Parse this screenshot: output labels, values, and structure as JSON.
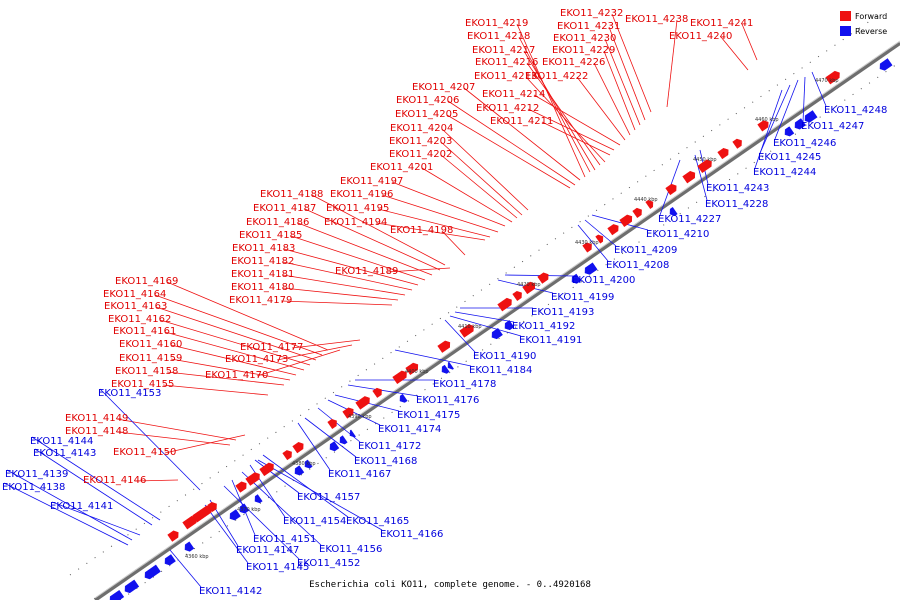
{
  "caption": "Escherichia coli KO11, complete genome. - 0..4920168",
  "legend": [
    {
      "label": "Forward",
      "color": "#ee1111"
    },
    {
      "label": "Reverse",
      "color": "#1111ee"
    }
  ],
  "colors": {
    "forward": "#ee1111",
    "reverse": "#1111ee",
    "axis": "#777777"
  },
  "scale_labels": [
    "4360 kbp",
    "4370 kbp",
    "4380 kbp",
    "4390 kbp",
    "4400 kbp",
    "4410 kbp",
    "4420 kbp",
    "4430 kbp",
    "4440 kbp",
    "4450 kbp",
    "4460 kbp",
    "4470 kbp"
  ],
  "forward_labels": [
    "EKO11_4232",
    "EKO11_4238",
    "EKO11_4219",
    "EKO11_4231",
    "EKO11_4241",
    "EKO11_4218",
    "EKO11_4230",
    "EKO11_4240",
    "EKO11_4217",
    "EKO11_4229",
    "EKO11_4216",
    "EKO11_4226",
    "EKO11_4213",
    "EKO11_4222",
    "EKO11_4207",
    "EKO11_4214",
    "EKO11_4206",
    "EKO11_4212",
    "EKO11_4205",
    "EKO11_4211",
    "EKO11_4204",
    "EKO11_4203",
    "EKO11_4202",
    "EKO11_4201",
    "EKO11_4197",
    "EKO11_4188",
    "EKO11_4196",
    "EKO11_4187",
    "EKO11_4195",
    "EKO11_4186",
    "EKO11_4194",
    "EKO11_4198",
    "EKO11_4185",
    "EKO11_4183",
    "EKO11_4182",
    "EKO11_4181",
    "EKO11_4189",
    "EKO11_4180",
    "EKO11_4169",
    "EKO11_4179",
    "EKO11_4164",
    "EKO11_4163",
    "EKO11_4162",
    "EKO11_4161",
    "EKO11_4160",
    "EKO11_4177",
    "EKO11_4159",
    "EKO11_4173",
    "EKO11_4158",
    "EKO11_4170",
    "EKO11_4155",
    "EKO11_4149",
    "EKO11_4148",
    "EKO11_4150",
    "EKO11_4146"
  ],
  "reverse_labels": [
    "EKO11_4248",
    "EKO11_4247",
    "EKO11_4246",
    "EKO11_4245",
    "EKO11_4244",
    "EKO11_4243",
    "EKO11_4228",
    "EKO11_4227",
    "EKO11_4210",
    "EKO11_4209",
    "EKO11_4208",
    "EKO11_4200",
    "EKO11_4199",
    "EKO11_4193",
    "EKO11_4192",
    "EKO11_4191",
    "EKO11_4190",
    "EKO11_4184",
    "EKO11_4178",
    "EKO11_4153",
    "EKO11_4176",
    "EKO11_4175",
    "EKO11_4174",
    "EKO11_4172",
    "EKO11_4168",
    "EKO11_4144",
    "EKO11_4167",
    "EKO11_4143",
    "EKO11_4139",
    "EKO11_4138",
    "EKO11_4157",
    "EKO11_4141",
    "EKO11_4154",
    "EKO11_4165",
    "EKO11_4166",
    "EKO11_4151",
    "EKO11_4156",
    "EKO11_4147",
    "EKO11_4145",
    "EKO11_4152",
    "EKO11_4142"
  ]
}
